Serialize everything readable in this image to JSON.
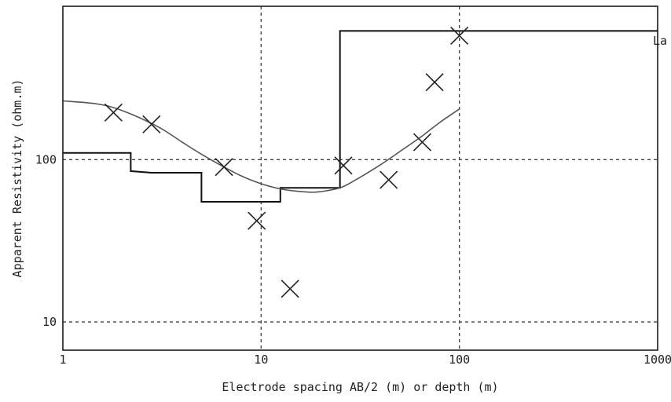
{
  "chart_data": {
    "type": "scatter",
    "title": "",
    "xlabel": "Electrode spacing AB/2 (m) or depth (m)",
    "ylabel": "Apparent Resistivity (ohm.m)",
    "x_scale": "log",
    "y_scale": "log",
    "xlim": [
      1,
      1000
    ],
    "ylim": [
      6.7,
      880
    ],
    "x_ticks": [
      {
        "value": 1,
        "label": "1"
      },
      {
        "value": 10,
        "label": "10"
      },
      {
        "value": 100,
        "label": "100"
      },
      {
        "value": 1000,
        "label": "1000"
      }
    ],
    "y_ticks": [
      {
        "value": 10,
        "label": "10"
      },
      {
        "value": 100,
        "label": "100"
      }
    ],
    "grid": {
      "x": [
        10,
        100
      ],
      "y": [
        10,
        100
      ],
      "style": "dashed"
    },
    "side_label": "La",
    "observed": {
      "x": [
        1.8,
        2.8,
        6.5,
        9.5,
        14,
        26,
        44,
        65,
        75,
        100
      ],
      "y": [
        195,
        165,
        90,
        42,
        16,
        92,
        75,
        128,
        300,
        580
      ]
    },
    "model_curve": {
      "x": [
        1,
        1.5,
        2,
        3,
        4,
        5,
        6.5,
        8,
        10,
        12.5,
        15,
        18,
        20,
        25,
        30,
        40,
        50,
        65,
        80,
        100
      ],
      "y": [
        230,
        220,
        200,
        160,
        128,
        108,
        90,
        79,
        71,
        66,
        64,
        63,
        63.5,
        67,
        75,
        93,
        112,
        140,
        170,
        205
      ]
    },
    "layer_model": {
      "x": [
        1,
        2.2,
        2.2,
        2.8,
        5,
        5,
        12.5,
        12.5,
        25,
        25,
        1000
      ],
      "y": [
        110,
        110,
        85,
        83,
        83,
        55,
        55,
        67,
        67,
        620,
        620
      ]
    },
    "colors": {
      "axis": "#1a1a1a",
      "grid": "#444444",
      "marker": "#222222",
      "curve": "#555555",
      "layer": "#111111"
    }
  }
}
